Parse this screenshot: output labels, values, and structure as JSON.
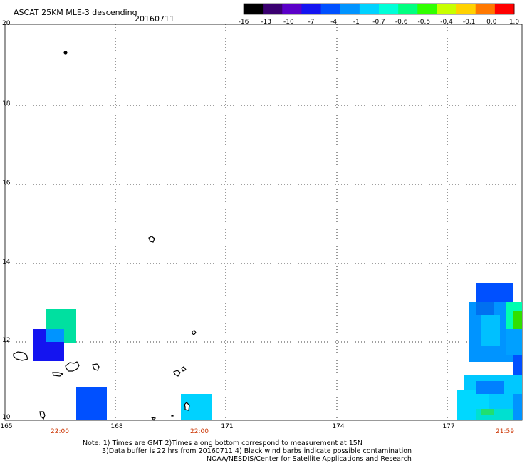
{
  "header": {
    "title": "ASCAT 25KM MLE-3 descending",
    "date": "20160711"
  },
  "colorbar": {
    "labels": [
      "-16",
      "-13",
      "-10",
      "-7",
      "-4",
      "-1",
      "-0.7",
      "-0.6",
      "-0.5",
      "-0.4",
      "-0.1",
      "0.0",
      "1.0"
    ],
    "colors": [
      "#000000",
      "#3a0070",
      "#5a00c8",
      "#1414f0",
      "#0050ff",
      "#0094ff",
      "#00d2ff",
      "#00ffd8",
      "#00ff80",
      "#30ff00",
      "#c8ff00",
      "#ffd200",
      "#ff7800",
      "#ff0000"
    ]
  },
  "map": {
    "latitude_labels": [
      "20",
      "18",
      "16",
      "14",
      "12",
      "10"
    ],
    "longitude_labels": [
      "165",
      "168",
      "171",
      "174",
      "177"
    ],
    "time_labels": [
      "22:00",
      "22:00",
      "21:59"
    ],
    "time_color": "#cc3300",
    "grid_color": "#000000"
  },
  "notes": {
    "line1": "Note: 1) Times are GMT 2)Times along bottom correspond to measurement at 15N",
    "line2": "3)Data buffer is 22 hrs from 20160711 4) Black wind barbs indicate possible contamination",
    "line3": "NOAA/NESDIS/Center for Satellite Applications and Research"
  }
}
